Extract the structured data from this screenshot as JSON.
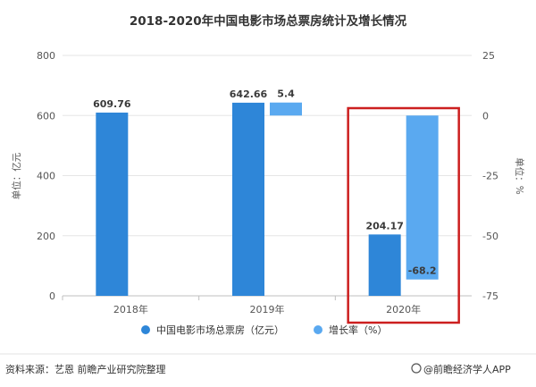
{
  "chart_data": {
    "type": "bar",
    "title": "2018-2020年中国电影市场总票房统计及增长情况",
    "categories": [
      "2018年",
      "2019年",
      "2020年"
    ],
    "series": [
      {
        "name": "中国电影市场总票房（亿元）",
        "axis": "left",
        "values": [
          609.76,
          642.66,
          204.17
        ],
        "labels": [
          "609.76",
          "642.66",
          "204.17"
        ],
        "color": "#2e86d8"
      },
      {
        "name": "增长率（%）",
        "axis": "right",
        "values": [
          null,
          5.4,
          -68.2
        ],
        "labels": [
          null,
          "5.4",
          "-68.2"
        ],
        "color": "#5aa9f0"
      }
    ],
    "left_axis": {
      "label": "单位：亿元",
      "ylim": [
        0,
        800
      ],
      "ticks": [
        "0",
        "200",
        "400",
        "600",
        "800"
      ]
    },
    "right_axis": {
      "label": "单位：%",
      "ylim": [
        -75,
        25
      ],
      "ticks": [
        "25",
        "0",
        "-25",
        "-50",
        "-75"
      ]
    },
    "highlight": {
      "category": "2020年",
      "color": "#cc1f1f"
    },
    "legend_position": "bottom"
  },
  "footer": {
    "source": "资料来源：艺恩 前瞻产业研究院整理",
    "brand": "@前瞻经济学人APP"
  }
}
